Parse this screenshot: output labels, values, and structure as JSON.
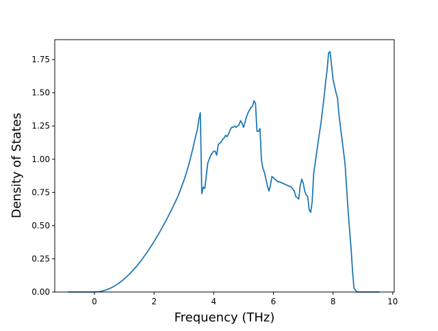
{
  "chart_data": {
    "type": "line",
    "title": "",
    "xlabel": "Frequency (THz)",
    "ylabel": "Density of States",
    "xlim": [
      -1.33,
      10.05
    ],
    "ylim": [
      0,
      1.9
    ],
    "xticks": [
      0,
      2,
      4,
      6,
      8,
      10
    ],
    "xtick_labels": [
      "0",
      "2",
      "4",
      "6",
      "8",
      "10"
    ],
    "yticks": [
      0.0,
      0.25,
      0.5,
      0.75,
      1.0,
      1.25,
      1.5,
      1.75
    ],
    "ytick_labels": [
      "0.00",
      "0.25",
      "0.50",
      "0.75",
      "1.00",
      "1.25",
      "1.50",
      "1.75"
    ],
    "grid": false,
    "line_color": "#1f77b4",
    "series": [
      {
        "x": [
          -0.88,
          -0.5,
          -0.2,
          0.0,
          0.2,
          0.4,
          0.6,
          0.8,
          1.0,
          1.2,
          1.4,
          1.6,
          1.8,
          2.0,
          2.2,
          2.4,
          2.6,
          2.8,
          3.0,
          3.1,
          3.2,
          3.3,
          3.4,
          3.45,
          3.5,
          3.55,
          3.6,
          3.65,
          3.7,
          3.8,
          3.9,
          4.0,
          4.05,
          4.1,
          4.15,
          4.2,
          4.25,
          4.3,
          4.35,
          4.4,
          4.45,
          4.5,
          4.55,
          4.6,
          4.65,
          4.7,
          4.75,
          4.8,
          4.85,
          4.9,
          4.95,
          5.0,
          5.05,
          5.1,
          5.15,
          5.2,
          5.25,
          5.3,
          5.35,
          5.4,
          5.45,
          5.5,
          5.55,
          5.6,
          5.65,
          5.7,
          5.75,
          5.8,
          5.85,
          5.9,
          5.95,
          6.0,
          6.05,
          6.1,
          6.15,
          6.2,
          6.3,
          6.4,
          6.5,
          6.6,
          6.7,
          6.75,
          6.8,
          6.85,
          6.9,
          6.95,
          7.0,
          7.05,
          7.1,
          7.15,
          7.2,
          7.25,
          7.3,
          7.35,
          7.4,
          7.45,
          7.5,
          7.6,
          7.7,
          7.75,
          7.8,
          7.85,
          7.9,
          7.95,
          8.0,
          8.05,
          8.1,
          8.15,
          8.2,
          8.3,
          8.4,
          8.45,
          8.5,
          8.55,
          8.6,
          8.65,
          8.7,
          8.8,
          9.0,
          9.2,
          9.4,
          9.55
        ],
        "y": [
          0.0,
          0.0,
          0.0,
          0.0,
          0.004,
          0.016,
          0.036,
          0.063,
          0.098,
          0.141,
          0.19,
          0.247,
          0.31,
          0.38,
          0.456,
          0.538,
          0.626,
          0.72,
          0.84,
          0.91,
          0.99,
          1.08,
          1.18,
          1.22,
          1.3,
          1.35,
          0.74,
          0.79,
          0.78,
          0.97,
          1.03,
          1.06,
          1.06,
          1.03,
          1.11,
          1.12,
          1.13,
          1.15,
          1.16,
          1.18,
          1.17,
          1.19,
          1.22,
          1.24,
          1.24,
          1.25,
          1.24,
          1.25,
          1.26,
          1.29,
          1.27,
          1.24,
          1.28,
          1.32,
          1.35,
          1.37,
          1.39,
          1.4,
          1.44,
          1.42,
          1.21,
          1.21,
          1.23,
          0.99,
          0.93,
          0.9,
          0.85,
          0.8,
          0.76,
          0.8,
          0.87,
          0.86,
          0.85,
          0.84,
          0.83,
          0.83,
          0.82,
          0.81,
          0.8,
          0.79,
          0.76,
          0.72,
          0.71,
          0.7,
          0.8,
          0.85,
          0.82,
          0.76,
          0.73,
          0.72,
          0.62,
          0.6,
          0.68,
          0.89,
          0.97,
          1.05,
          1.13,
          1.28,
          1.47,
          1.58,
          1.67,
          1.8,
          1.81,
          1.71,
          1.6,
          1.55,
          1.5,
          1.46,
          1.33,
          1.15,
          0.97,
          0.8,
          0.63,
          0.48,
          0.34,
          0.17,
          0.03,
          0.0,
          0.0,
          0.0,
          0.0,
          0.0
        ]
      }
    ]
  }
}
